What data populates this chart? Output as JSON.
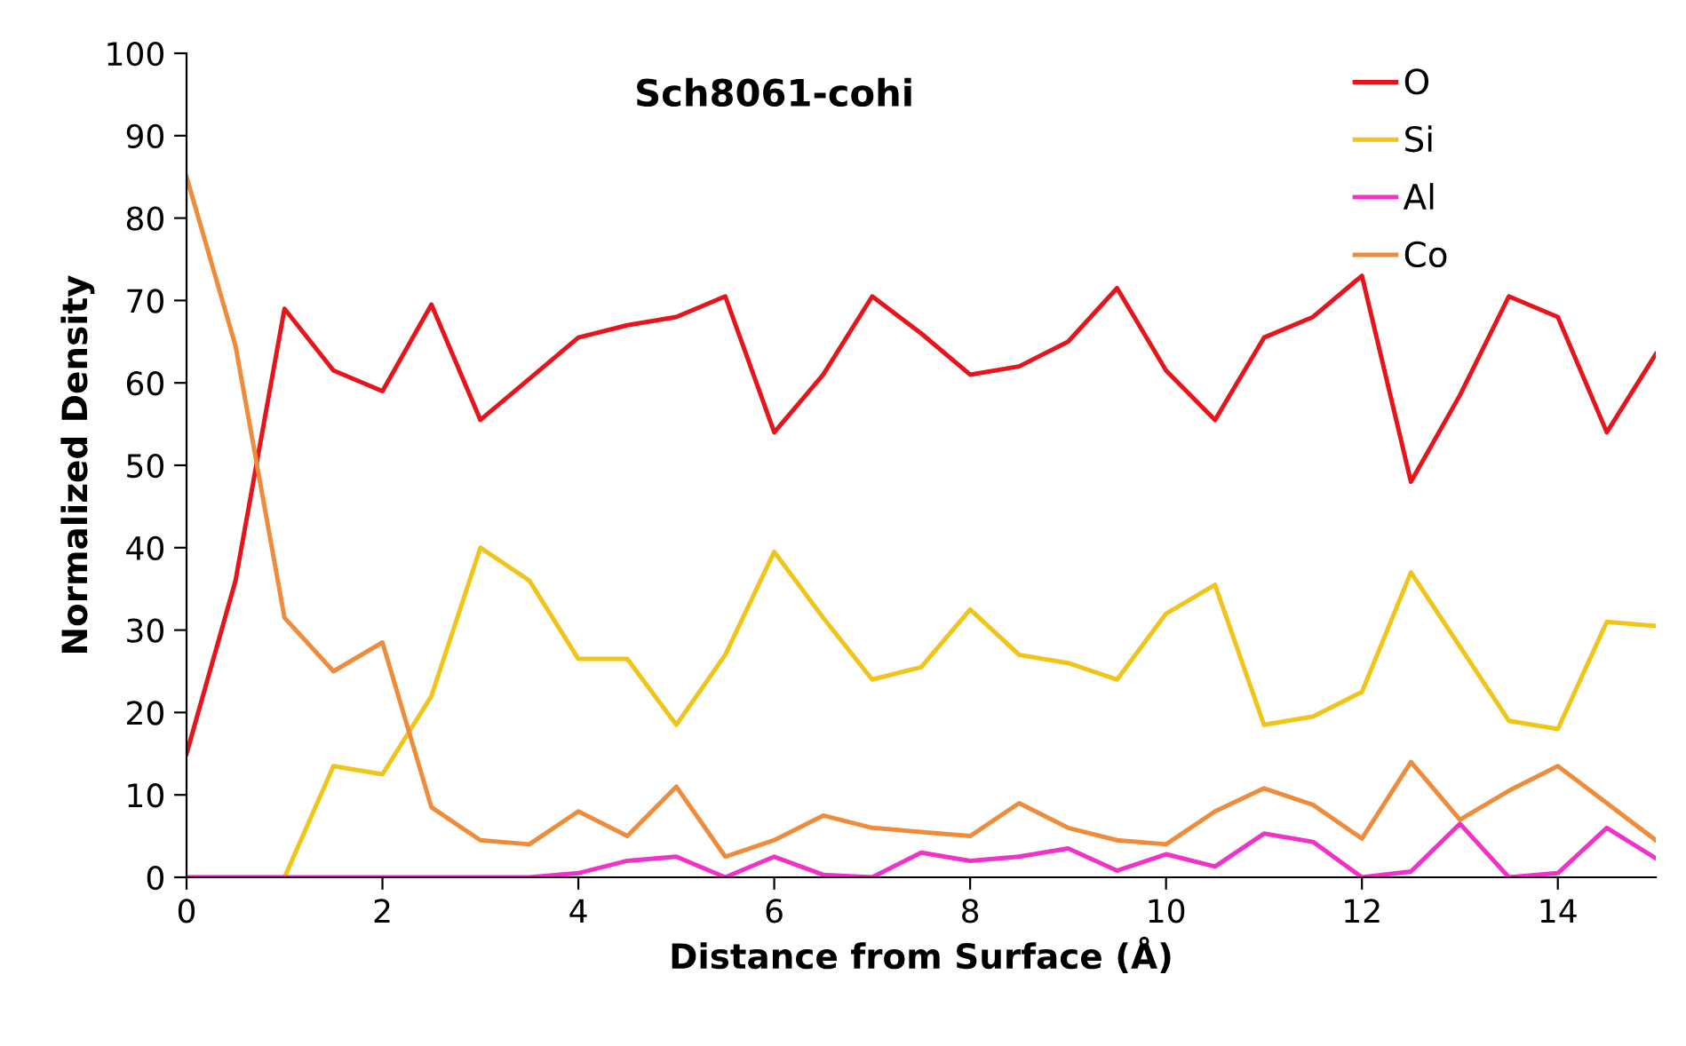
{
  "chart_data": {
    "type": "line",
    "title": "Sch8061-cohi",
    "xlabel": "Distance from Surface (Å)",
    "ylabel": "Normalized Density",
    "x": [
      0,
      0.5,
      1,
      1.5,
      2,
      2.5,
      3,
      3.5,
      4,
      4.5,
      5,
      5.5,
      6,
      6.5,
      7,
      7.5,
      8,
      8.5,
      9,
      9.5,
      10,
      10.5,
      11,
      11.5,
      12,
      12.5,
      13,
      13.5,
      14,
      14.5,
      15
    ],
    "series": [
      {
        "name": "O",
        "color": "#e8141b",
        "values": [
          15,
          36,
          69,
          61.5,
          59,
          69.5,
          55.5,
          60.5,
          65.5,
          67,
          68,
          70.5,
          54,
          61,
          70.5,
          66,
          61,
          62,
          65,
          71.5,
          61.5,
          55.5,
          65.5,
          68,
          73,
          48,
          58.5,
          70.5,
          68,
          54,
          63.5
        ]
      },
      {
        "name": "Si",
        "color": "#f0c419",
        "values": [
          0,
          0,
          0,
          13.5,
          12.5,
          22,
          40,
          36,
          26.5,
          26.5,
          18.5,
          27,
          39.5,
          31.5,
          24,
          25.5,
          32.5,
          27,
          26,
          24,
          32,
          35.5,
          18.5,
          19.5,
          22.5,
          37,
          28,
          19,
          18,
          31,
          30.5
        ]
      },
      {
        "name": "Al",
        "color": "#f032c8",
        "values": [
          0,
          0,
          0,
          0,
          0,
          0,
          0,
          0,
          0.5,
          2,
          2.5,
          0,
          2.5,
          0.3,
          0,
          3,
          2,
          2.5,
          3.5,
          0.8,
          2.8,
          1.3,
          5.3,
          4.3,
          0,
          0.7,
          6.5,
          0,
          0.5,
          6,
          2.3
        ]
      },
      {
        "name": "Co",
        "color": "#ef8c3c",
        "values": [
          85,
          64.5,
          31.5,
          25,
          28.5,
          8.5,
          4.5,
          4,
          8,
          5,
          11,
          2.5,
          4.5,
          7.5,
          6,
          5.5,
          5,
          9,
          6,
          4.5,
          4,
          8,
          10.8,
          8.8,
          4.7,
          14,
          7,
          10.5,
          13.5,
          9,
          4.5
        ]
      }
    ],
    "xlim": [
      0,
      15
    ],
    "xticks": [
      0,
      2,
      4,
      6,
      8,
      10,
      12,
      14
    ],
    "ylim": [
      0,
      100
    ],
    "yticks": [
      0,
      10,
      20,
      30,
      40,
      50,
      60,
      70,
      80,
      90,
      100
    ],
    "grid": false,
    "legend": "top right",
    "marker": "none",
    "line_style": "solid"
  }
}
